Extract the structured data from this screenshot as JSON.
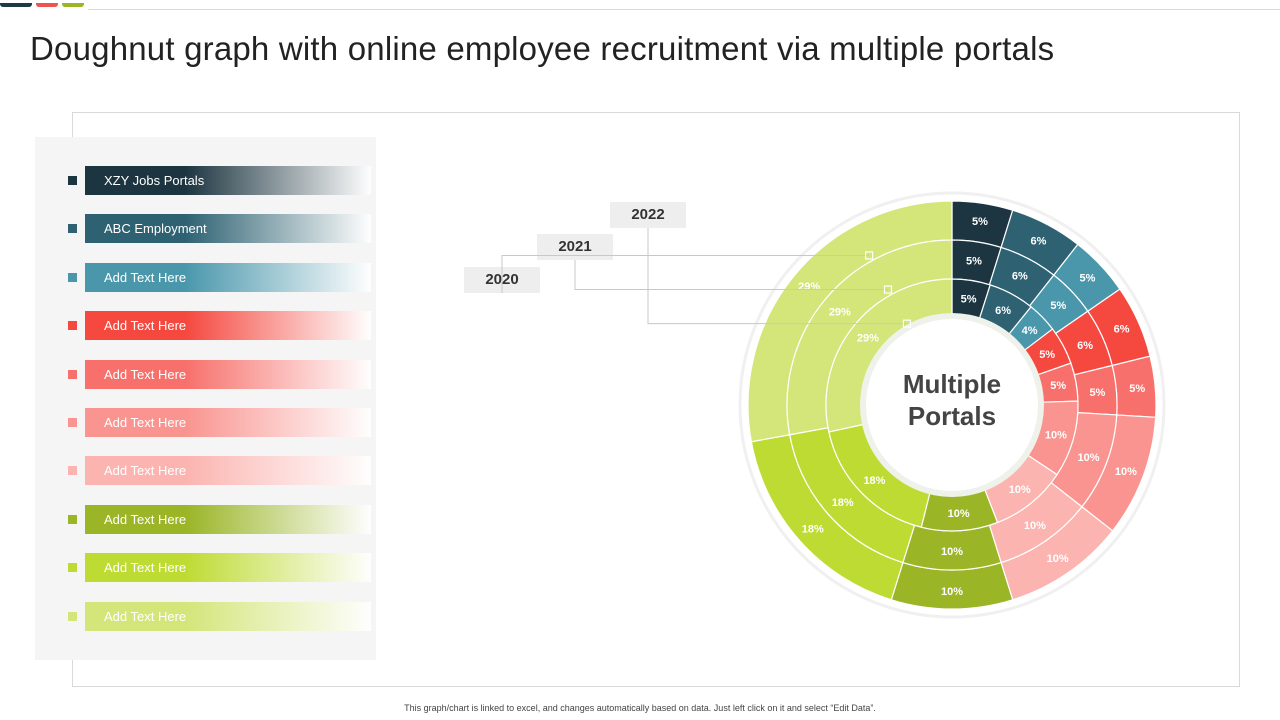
{
  "page_title": "Doughnut graph with online employee recruitment via multiple portals",
  "footer_note": "This graph/chart is linked to excel, and changes automatically based on data. Just left click on it and select “Edit Data”.",
  "colors": {
    "accent_bars": [
      "#1e3a44",
      "#ef5350",
      "#9ab526"
    ]
  },
  "chart_data": {
    "type": "doughnut",
    "center_label": [
      "Multiple",
      "Portals"
    ],
    "rings": [
      {
        "name": "2020",
        "values": [
          5,
          6,
          5,
          6,
          5,
          10,
          10,
          10,
          18,
          29
        ]
      },
      {
        "name": "2021",
        "values": [
          5,
          6,
          5,
          6,
          5,
          10,
          10,
          10,
          18,
          29
        ]
      },
      {
        "name": "2022",
        "values": [
          5,
          6,
          4,
          5,
          5,
          10,
          10,
          10,
          18,
          29
        ]
      }
    ],
    "data_labels": [
      [
        "5%",
        "6%",
        "5%",
        "6%",
        "5%",
        "10%",
        "10%",
        "10%",
        "18%",
        "29%"
      ],
      [
        "5%",
        "6%",
        "5%",
        "6%",
        "5%",
        "10%",
        "10%",
        "10%",
        "18%",
        "29%"
      ],
      [
        "5%",
        "6%",
        "4%",
        "5%",
        "5%",
        "10%",
        "10%",
        "10%",
        "18%",
        "29%"
      ]
    ],
    "categories": [
      "XZY Jobs Portals",
      "ABC Employment",
      "Add Text Here",
      "Add Text Here",
      "Add Text Here",
      "Add Text Here",
      "Add Text Here",
      "Add Text Here",
      "Add Text Here",
      "Add Text Here"
    ],
    "category_colors": [
      "#1c3540",
      "#2e6272",
      "#4a97ac",
      "#f5483f",
      "#f7706b",
      "#f99490",
      "#fbb4b0",
      "#9ab526",
      "#bedb33",
      "#d4e57a"
    ],
    "legend_placement": "left"
  }
}
